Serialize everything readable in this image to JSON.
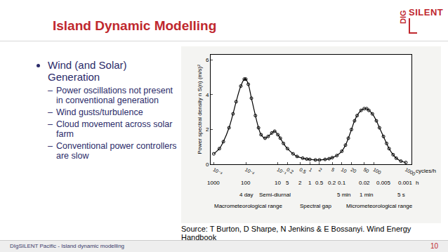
{
  "slide": {
    "title": "Island Dynamic Modelling",
    "logo": {
      "top": "SILENT",
      "side": "DIG"
    },
    "bullets": [
      {
        "text": "Wind (and Solar) Generation",
        "items": [
          "Power oscillations not present in conventional generation",
          "Wind gusts/turbulence",
          "Cloud movement across solar farm",
          "Conventional power controllers are slow"
        ]
      }
    ],
    "source": "Source: T Burton, D Sharpe, N Jenkins & E Bossanyi.  Wind Energy Handbook",
    "footer": "DIgSILENT Pacific - Island dynamic modelling",
    "page": "10"
  },
  "chart_data": {
    "type": "line",
    "ylabel": "Power spectral density n S(n) (m/s)²",
    "xlabel": "cycles/h",
    "period_label": "h",
    "log": "x",
    "grid": false,
    "color": "#000000",
    "marker": "circle-open",
    "x": [
      0.001,
      0.0015,
      0.002,
      0.003,
      0.004,
      0.005,
      0.007,
      0.009,
      0.01,
      0.012,
      0.015,
      0.02,
      0.025,
      0.03,
      0.04,
      0.05,
      0.065,
      0.08,
      0.1,
      0.12,
      0.15,
      0.2,
      0.3,
      0.4,
      0.6,
      0.8,
      1,
      1.5,
      2,
      3,
      4,
      5,
      7,
      10,
      13,
      16,
      20,
      25,
      30,
      40,
      50,
      60,
      70,
      90,
      120,
      150,
      200,
      250,
      300,
      400,
      500,
      700,
      1000
    ],
    "values": [
      0.6,
      0.9,
      1.3,
      2.1,
      2.9,
      3.6,
      4.5,
      4.9,
      4.9,
      4.6,
      3.8,
      2.8,
      2.1,
      1.7,
      1.5,
      1.6,
      1.8,
      1.9,
      1.7,
      1.5,
      1.2,
      0.9,
      0.6,
      0.45,
      0.35,
      0.3,
      0.28,
      0.25,
      0.25,
      0.28,
      0.32,
      0.38,
      0.5,
      0.75,
      1.1,
      1.5,
      2.0,
      2.5,
      2.8,
      3.1,
      3.2,
      3.2,
      3.1,
      2.9,
      2.5,
      2.1,
      1.6,
      1.2,
      0.9,
      0.55,
      0.35,
      0.18,
      0.1
    ],
    "xlim": [
      0.0008,
      1500
    ],
    "xticks": [
      {
        "value": 0.001,
        "label": "10⁻³"
      },
      {
        "value": 0.01,
        "label": "10⁻²"
      },
      {
        "value": 0.1,
        "label": "10⁻¹"
      },
      0.2,
      0.5,
      1,
      2,
      5,
      10,
      20,
      50,
      100,
      1000
    ],
    "ylim": [
      0,
      6.3
    ],
    "yticks": [
      0,
      2,
      4,
      6
    ],
    "period_ticks": [
      {
        "value": 0.001,
        "label": "1000"
      },
      {
        "value": 0.01,
        "label": "100"
      },
      {
        "value": 0.1,
        "label": "10"
      },
      {
        "value": 0.2,
        "label": "5"
      },
      {
        "value": 0.5,
        "label": "2"
      },
      {
        "value": 1,
        "label": "1"
      },
      {
        "value": 2,
        "label": "0.5"
      },
      {
        "value": 5,
        "label": "0.2"
      },
      {
        "value": 10,
        "label": "0.1"
      },
      {
        "value": 50,
        "label": "0.02"
      },
      {
        "value": 200,
        "label": "0.005"
      },
      {
        "value": 1000,
        "label": "0.001"
      }
    ],
    "annotations": [
      {
        "text": "4 day",
        "x": 0.0104
      },
      {
        "text": "Semi-diurnal",
        "x": 0.083
      },
      {
        "text": "5 min",
        "x": 12
      },
      {
        "text": "1 min",
        "x": 60
      },
      {
        "text": "5 s",
        "x": 720
      }
    ],
    "ranges": [
      {
        "text": "Macrometeorological range",
        "x": 0.012
      },
      {
        "text": "Spectral gap",
        "x": 1.5
      },
      {
        "text": "Micrometeorological range",
        "x": 150
      }
    ]
  }
}
